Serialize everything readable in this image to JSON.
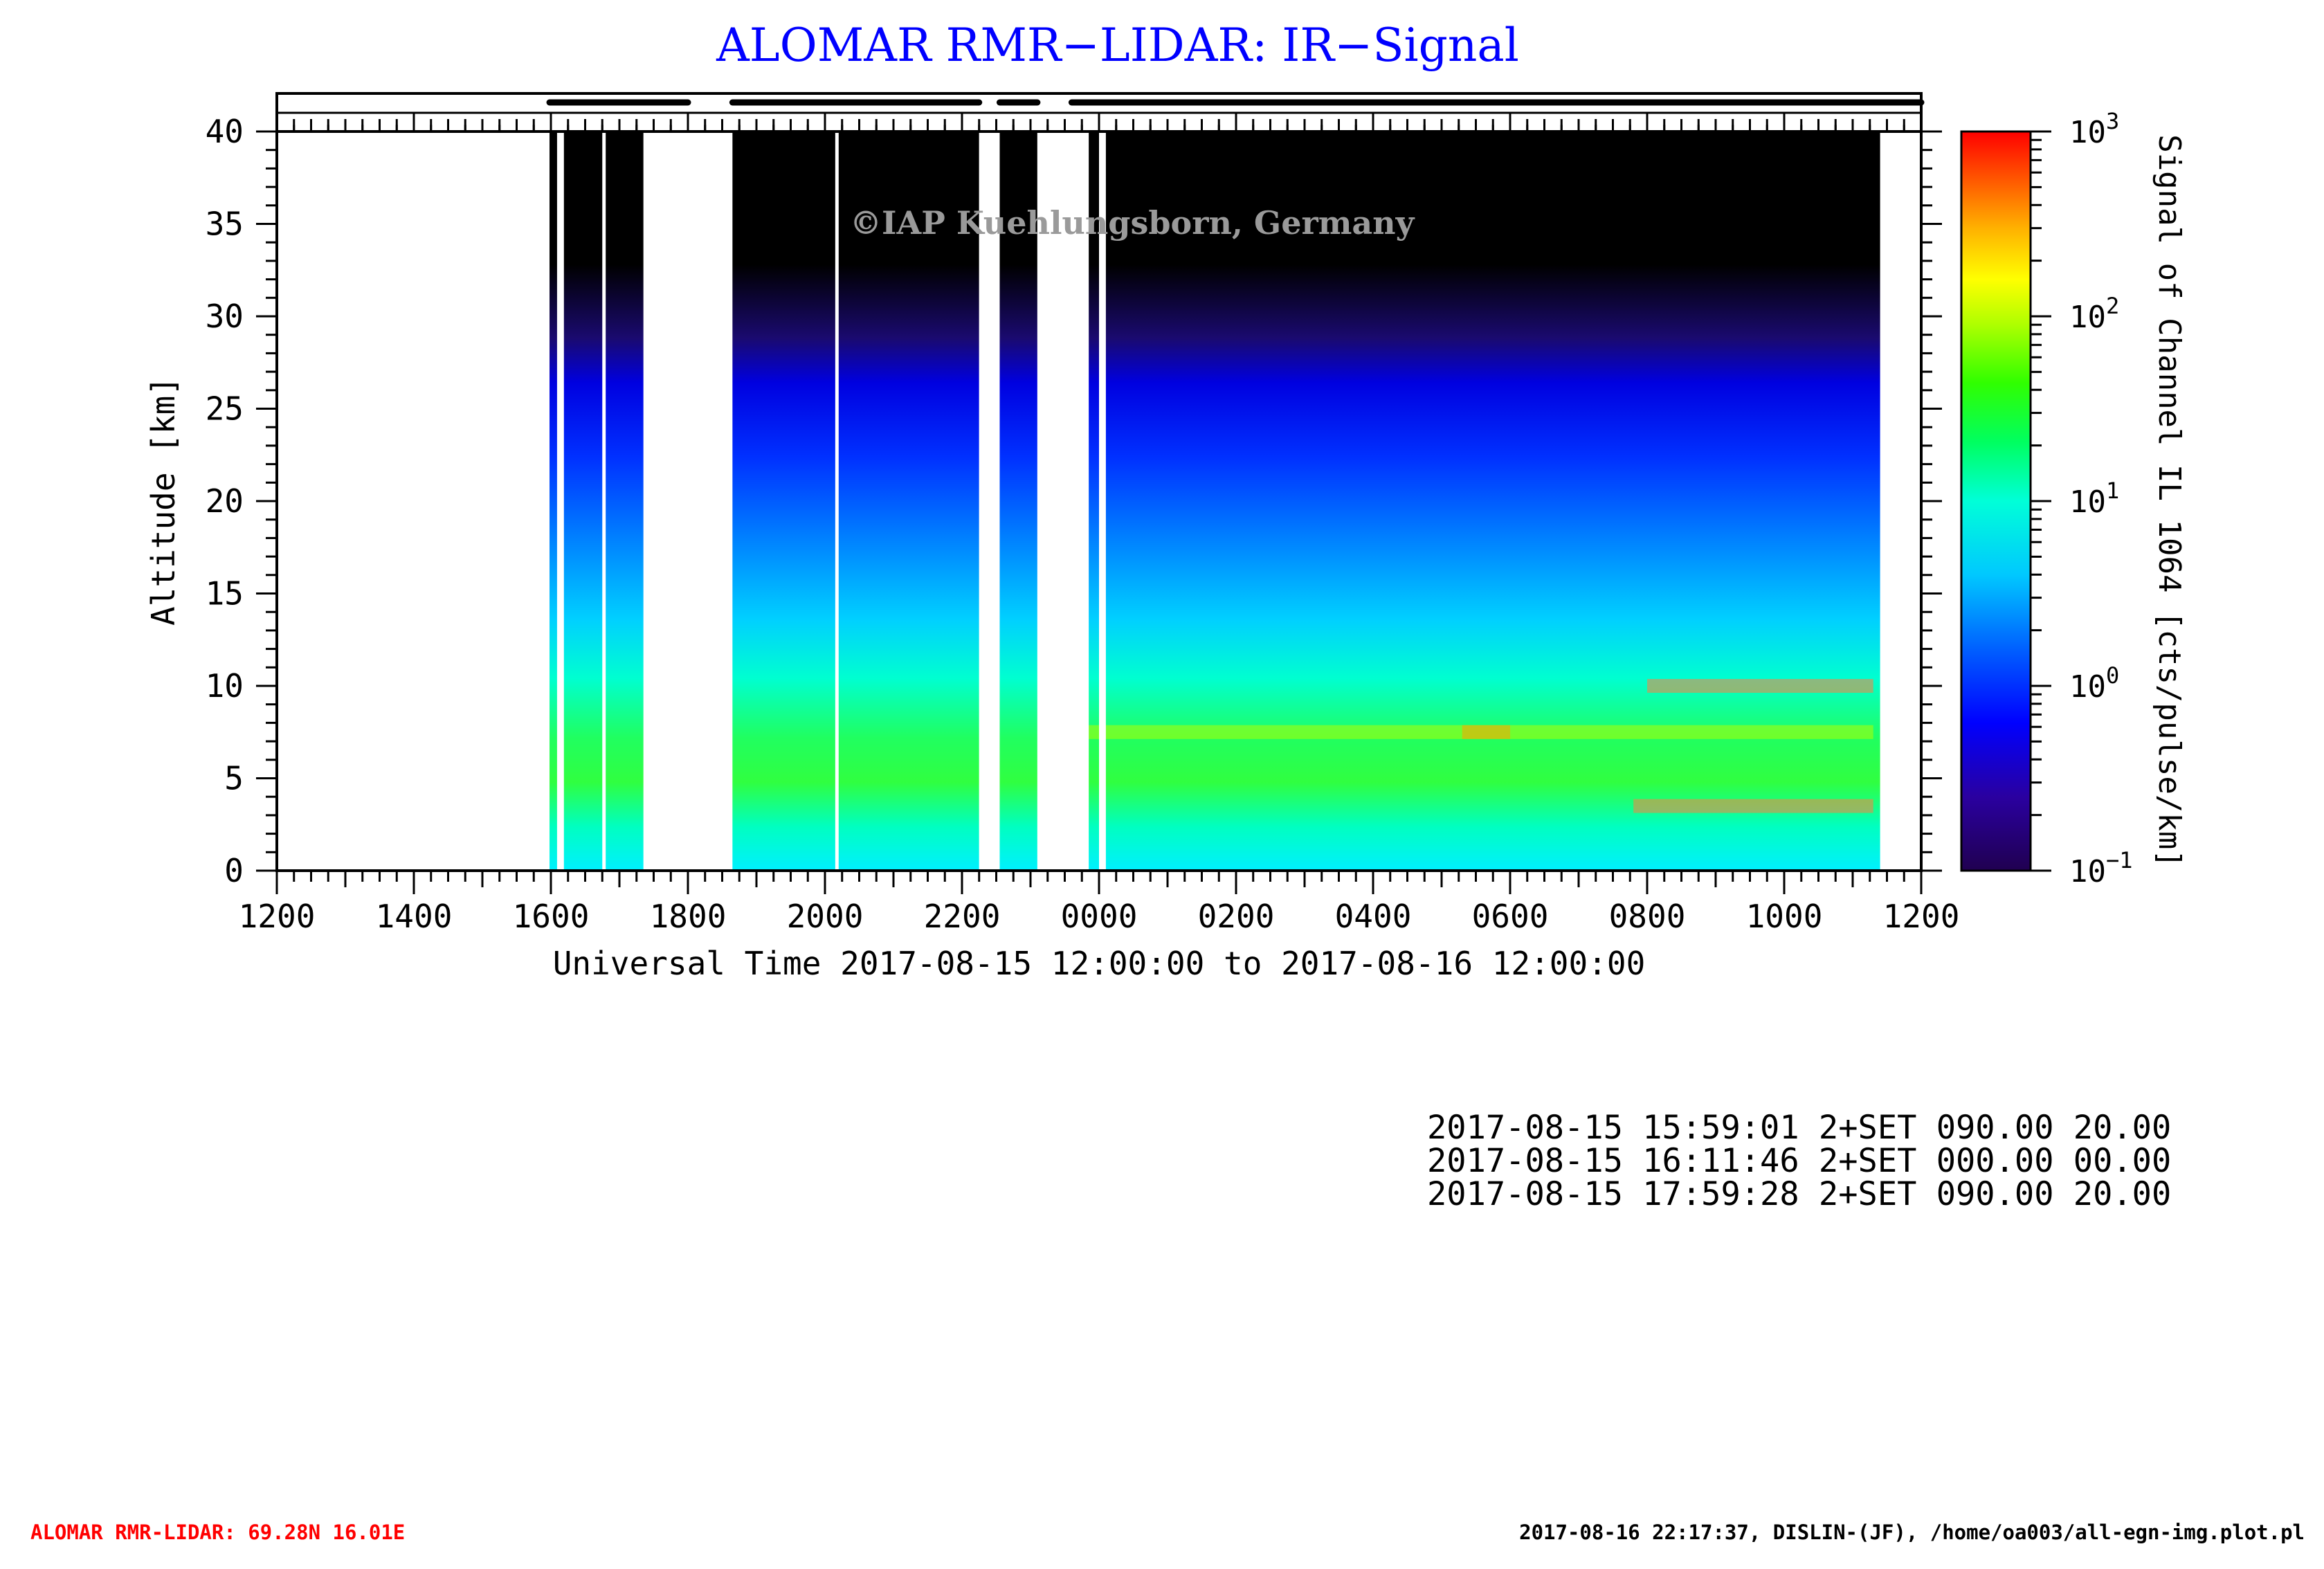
{
  "title": "ALOMAR RMR−LIDAR: IR−Signal",
  "watermark": "©IAP Kuehlungsborn, Germany",
  "chart_data": {
    "type": "heatmap",
    "xlabel": "Universal Time 2017-08-15 12:00:00 to 2017-08-16 12:00:00",
    "ylabel": "Altitude [km]",
    "x_tick_labels": [
      "1200",
      "1400",
      "1600",
      "1800",
      "2000",
      "2200",
      "0000",
      "0200",
      "0400",
      "0600",
      "0800",
      "1000",
      "1200"
    ],
    "x_range_hours_ut": [
      12,
      36
    ],
    "y_ticks": [
      0,
      5,
      10,
      15,
      20,
      25,
      30,
      35,
      40
    ],
    "ylim": [
      0,
      40
    ],
    "colorbar": {
      "label": "Signal of Channel IL 1064 [cts/pulse/km]",
      "scale": "log",
      "range": [
        0.1,
        1000
      ],
      "tick_bases": [
        "10",
        "10",
        "10",
        "10",
        "10"
      ],
      "tick_exponents": [
        "3",
        "2",
        "1",
        "0",
        "−1"
      ],
      "tick_values": [
        1000,
        100,
        10,
        1,
        0.1
      ],
      "colormap": [
        "#200050",
        "#2a00a0",
        "#0000ff",
        "#0060ff",
        "#00c8ff",
        "#00ffd8",
        "#00ff60",
        "#30ff00",
        "#b0ff00",
        "#ffff00",
        "#ffb000",
        "#ff5000",
        "#ff0000"
      ]
    },
    "measurement_intervals_hours_ut": [
      [
        15.98,
        18.0
      ],
      [
        18.65,
        22.25
      ],
      [
        22.55,
        23.1
      ],
      [
        23.6,
        36.0
      ]
    ],
    "data_gaps_hours_ut": [
      [
        16.09,
        16.19
      ],
      [
        16.75,
        16.8
      ],
      [
        17.35,
        18.0
      ],
      [
        20.15,
        20.2
      ],
      [
        22.25,
        22.55
      ],
      [
        23.1,
        23.85
      ],
      [
        24.0,
        24.1
      ],
      [
        35.4,
        36.0
      ]
    ],
    "clouds": [
      {
        "start_h": 23.4,
        "end_h": 35.3,
        "altitude_km": 7.5,
        "signal": "10-50"
      },
      {
        "start_h": 29.3,
        "end_h": 30.0,
        "altitude_km": 7.5,
        "signal": "100-300"
      },
      {
        "start_h": 31.8,
        "end_h": 35.3,
        "altitude_km": 3.5,
        "signal": "30-300"
      },
      {
        "start_h": 32.0,
        "end_h": 35.3,
        "altitude_km": 10.0,
        "signal": "30-300"
      }
    ]
  },
  "settings_log": [
    "2017-08-15 15:59:01 2+SET 090.00 20.00",
    "2017-08-15 16:11:46 2+SET 000.00 00.00",
    "2017-08-15 17:59:28 2+SET 090.00 20.00"
  ],
  "footer": {
    "left": "ALOMAR RMR-LIDAR: 69.28N 16.01E",
    "right": "2017-08-16 22:17:37, DISLIN-(JF), /home/oa003/all-egn-img.plot.pl"
  }
}
